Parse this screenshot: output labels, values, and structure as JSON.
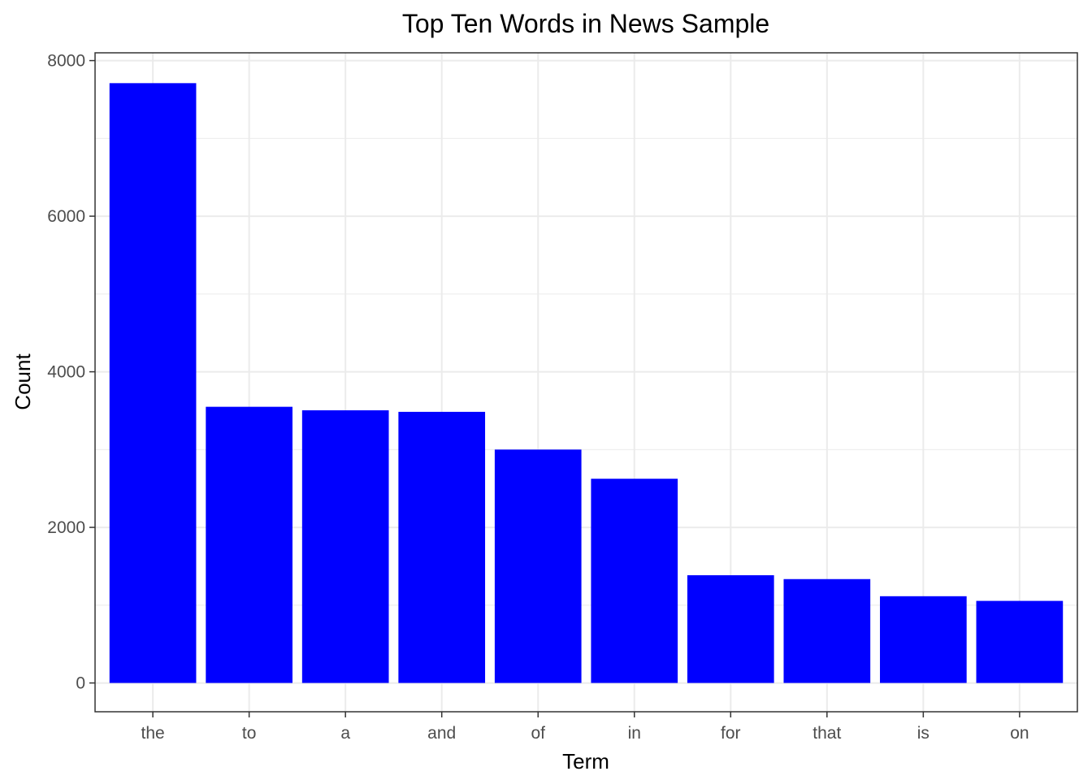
{
  "chart_data": {
    "type": "bar",
    "title": "Top Ten Words in News Sample",
    "xlabel": "Term",
    "ylabel": "Count",
    "categories": [
      "the",
      "to",
      "a",
      "and",
      "of",
      "in",
      "for",
      "that",
      "is",
      "on"
    ],
    "values": [
      7710,
      3550,
      3505,
      3485,
      3000,
      2625,
      1385,
      1335,
      1115,
      1055
    ],
    "ylim": [
      -370,
      8100
    ],
    "yticks": [
      0,
      2000,
      4000,
      6000,
      8000
    ],
    "ytick_labels": [
      "0",
      "2000",
      "4000",
      "6000",
      "8000"
    ],
    "grid": true,
    "legend": "none",
    "bar_color": "#0000ff",
    "panel_border_color": "#333333",
    "grid_color": "#ebebeb"
  }
}
